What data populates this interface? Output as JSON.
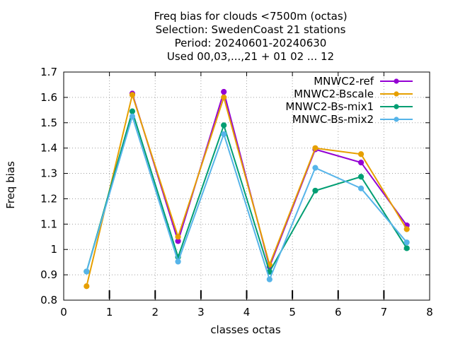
{
  "chart_data": {
    "type": "line",
    "title_lines": [
      "Freq bias  for clouds <7500m (octas)",
      "Selection: SwedenCoast     21 stations",
      "Period: 20240601-20240630",
      "Used 00,03,...,21 + 01 02 ... 12"
    ],
    "xlabel": "classes octas",
    "ylabel": "Freq bias",
    "xlim": [
      0,
      8
    ],
    "ylim": [
      0.8,
      1.7
    ],
    "xticks": [
      0,
      1,
      2,
      3,
      4,
      5,
      6,
      7,
      8
    ],
    "yticks": [
      0.8,
      0.9,
      1.0,
      1.1,
      1.2,
      1.3,
      1.4,
      1.5,
      1.6,
      1.7
    ],
    "ytick_labels": [
      "0.8",
      "0.9",
      "1",
      "1.1",
      "1.2",
      "1.3",
      "1.4",
      "1.5",
      "1.6",
      "1.7"
    ],
    "grid": true,
    "legend_position": "top-right",
    "x": [
      0.5,
      1.5,
      2.5,
      3.5,
      4.5,
      5.5,
      6.5,
      7.5
    ],
    "series": [
      {
        "name": "MNWC2-ref",
        "color": "#9400d3",
        "x": [
          1.5,
          2.5,
          3.5,
          4.5,
          5.5,
          6.5,
          7.5
        ],
        "values": [
          1.615,
          1.033,
          1.622,
          0.932,
          1.395,
          1.343,
          1.095
        ]
      },
      {
        "name": "MNWC2-Bscale",
        "color": "#e69f00",
        "x": [
          0.5,
          1.5,
          2.5,
          3.5,
          4.5,
          5.5,
          6.5,
          7.5
        ],
        "values": [
          0.855,
          1.61,
          1.05,
          1.6,
          0.94,
          1.4,
          1.376,
          1.08
        ]
      },
      {
        "name": "MNWC2-Bs-mix1",
        "color": "#009e73",
        "x": [
          0.5,
          1.5,
          2.5,
          3.5,
          4.5,
          5.5,
          6.5,
          7.5
        ],
        "values": [
          0.913,
          1.545,
          0.97,
          1.49,
          0.912,
          1.232,
          1.287,
          1.005
        ]
      },
      {
        "name": "MNWC-Bs-mix2",
        "color": "#56b4e9",
        "x": [
          0.5,
          1.5,
          2.5,
          3.5,
          4.5,
          5.5,
          6.5,
          7.5
        ],
        "values": [
          0.913,
          1.525,
          0.952,
          1.455,
          0.882,
          1.322,
          1.241,
          1.028
        ]
      }
    ]
  }
}
